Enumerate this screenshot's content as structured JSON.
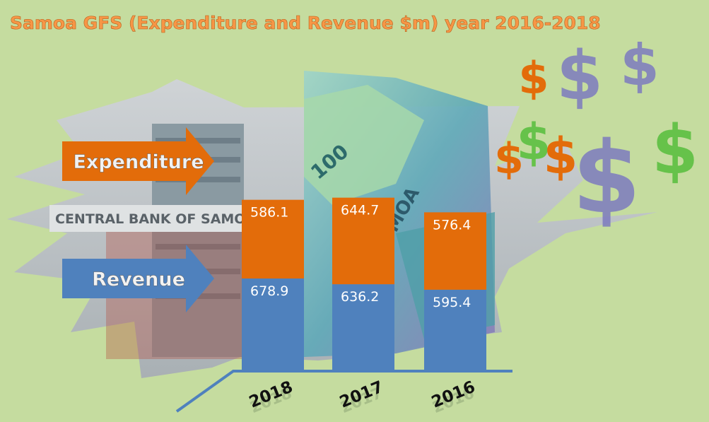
{
  "chart_data": {
    "type": "bar",
    "stacked": true,
    "title": "Samoa GFS (Expenditure and Revenue $m) year 2016-2018",
    "categories": [
      "2018",
      "2017",
      "2016"
    ],
    "series": [
      {
        "name": "Revenue",
        "values": [
          678.9,
          636.2,
          595.4
        ],
        "color": "#4f81bd"
      },
      {
        "name": "Expenditure",
        "values": [
          586.1,
          644.7,
          576.4
        ],
        "color": "#e36c0a"
      }
    ],
    "legend": "left, as arrows",
    "grid": false
  },
  "photo_sign_text": "CENTRAL BANK OF SAMOA",
  "decor": {
    "dollar_glyph": "$",
    "banknote_text": "100",
    "banknote_text_2": "MOA",
    "background": "#c5dc9f",
    "title_color": "#f79646",
    "green_dollar": "#66c24a",
    "orange_dollar": "#e36c0a",
    "purple_dollar": "#7d7bbf"
  }
}
